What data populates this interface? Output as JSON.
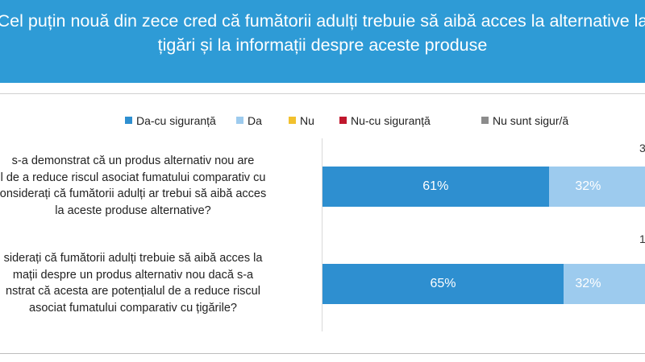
{
  "header": {
    "title_line1": "Cel puțin nouă din zece cred că fumătorii adulți trebuie să aibă acces la alternative la",
    "title_line2": "țigări și la informații despre aceste produse"
  },
  "colors": {
    "banner": "#2e9bd6",
    "da_cu_siguranta": "#2e8fd0",
    "da": "#9dcbee",
    "nu": "#f2c12e",
    "nu_cu_siguranta": "#c0172d",
    "nu_sunt_sigur": "#8c8c8c"
  },
  "chart_data": {
    "type": "bar",
    "orientation": "horizontal",
    "stacked": true,
    "legend_position": "top",
    "categories": [
      "s-a demonstrat că un produs alternativ nou are l de a reduce riscul asociat fumatului comparativ cu onsiderați că fumătorii adulți ar trebui să aibă acces la aceste produse alternative?",
      "siderați că fumătorii adulți trebuie să aibă acces la mații despre un produs alternativ nou dacă s-a nstrat că acesta are potențialul de a reduce riscul asociat fumatului comparativ cu țigările?"
    ],
    "question_lines": [
      [
        "s-a demonstrat că un produs alternativ nou are",
        "l de a reduce riscul asociat fumatului comparativ cu",
        "onsiderați că fumătorii adulți ar trebui să aibă acces",
        "la aceste produse alternative?"
      ],
      [
        "siderați că fumătorii adulți trebuie să aibă acces la",
        "mații despre un produs alternativ nou dacă s-a",
        "nstrat că acesta are potențialul de a reduce riscul",
        "asociat fumatului comparativ cu țigările?"
      ]
    ],
    "series": [
      {
        "name": "Da-cu siguranță",
        "values": [
          61,
          65
        ],
        "labels": [
          "61%",
          "65%"
        ]
      },
      {
        "name": "Da",
        "values": [
          32,
          32
        ],
        "labels": [
          "32%",
          "32%"
        ]
      },
      {
        "name": "Nu",
        "values": [
          null,
          null
        ],
        "labels": [
          "",
          ""
        ]
      },
      {
        "name": "Nu-cu siguranță",
        "values": [
          null,
          null
        ],
        "labels": [
          "",
          ""
        ]
      },
      {
        "name": "Nu sunt sigur/ă",
        "values": [
          null,
          null
        ],
        "labels": [
          "",
          ""
        ]
      }
    ],
    "top_labels": [
      "3",
      "1"
    ],
    "xlim": [
      0,
      100
    ]
  }
}
